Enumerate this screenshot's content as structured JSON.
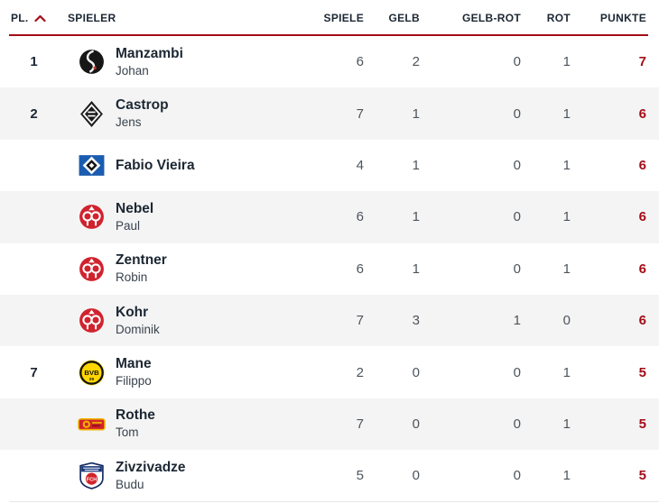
{
  "colors": {
    "accent": "#a30d17",
    "header_text": "#1c2733",
    "name_text": "#1c2733",
    "subtext": "#39434e",
    "number_text": "#4d545c",
    "row_alt_bg": "#f4f4f4",
    "separator": "#e7e7e7"
  },
  "header": {
    "rank_label": "PL.",
    "sort_icon": "chevron-up-icon",
    "player_label": "SPIELER",
    "stat_columns": [
      "SPIELE",
      "GELB",
      "GELB-ROT",
      "ROT",
      "PUNKTE"
    ]
  },
  "rows": [
    {
      "rank": "1",
      "club": "freiburg",
      "club_icon": "sc-freiburg-logo",
      "surname": "Manzambi",
      "firstname": "Johan",
      "spiele": "6",
      "gelb": "2",
      "gelb_rot": "0",
      "rot": "1",
      "punkte": "7"
    },
    {
      "rank": "2",
      "club": "gladbach",
      "club_icon": "borussia-moenchengladbach-logo",
      "surname": "Castrop",
      "firstname": "Jens",
      "spiele": "7",
      "gelb": "1",
      "gelb_rot": "0",
      "rot": "1",
      "punkte": "6"
    },
    {
      "rank": "",
      "club": "hsv",
      "club_icon": "hamburger-sv-logo",
      "surname": "Fabio Vieira",
      "firstname": "",
      "spiele": "4",
      "gelb": "1",
      "gelb_rot": "0",
      "rot": "1",
      "punkte": "6"
    },
    {
      "rank": "",
      "club": "mainz",
      "club_icon": "mainz-05-logo",
      "surname": "Nebel",
      "firstname": "Paul",
      "spiele": "6",
      "gelb": "1",
      "gelb_rot": "0",
      "rot": "1",
      "punkte": "6"
    },
    {
      "rank": "",
      "club": "mainz",
      "club_icon": "mainz-05-logo",
      "surname": "Zentner",
      "firstname": "Robin",
      "spiele": "6",
      "gelb": "1",
      "gelb_rot": "0",
      "rot": "1",
      "punkte": "6"
    },
    {
      "rank": "",
      "club": "mainz",
      "club_icon": "mainz-05-logo",
      "surname": "Kohr",
      "firstname": "Dominik",
      "spiele": "7",
      "gelb": "3",
      "gelb_rot": "1",
      "rot": "0",
      "punkte": "6"
    },
    {
      "rank": "7",
      "club": "dortmund",
      "club_icon": "borussia-dortmund-logo",
      "surname": "Mane",
      "firstname": "Filippo",
      "spiele": "2",
      "gelb": "0",
      "gelb_rot": "0",
      "rot": "1",
      "punkte": "5"
    },
    {
      "rank": "",
      "club": "union",
      "club_icon": "union-berlin-logo",
      "surname": "Rothe",
      "firstname": "Tom",
      "spiele": "7",
      "gelb": "0",
      "gelb_rot": "0",
      "rot": "1",
      "punkte": "5"
    },
    {
      "rank": "",
      "club": "heidenheim",
      "club_icon": "heidenheim-fch-logo",
      "surname": "Zivzivadze",
      "firstname": "Budu",
      "spiele": "5",
      "gelb": "0",
      "gelb_rot": "0",
      "rot": "1",
      "punkte": "5"
    }
  ]
}
